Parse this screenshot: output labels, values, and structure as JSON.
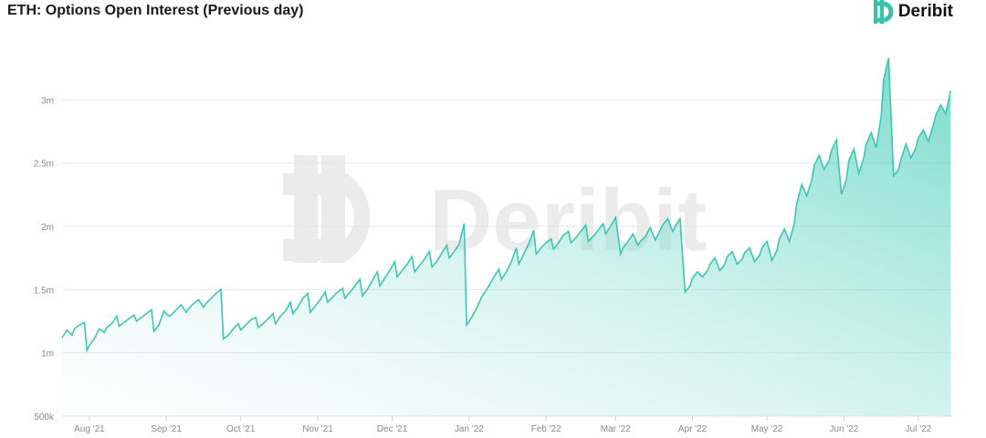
{
  "header": {
    "title": "ETH: Options Open Interest (Previous day)",
    "brand": "Deribit"
  },
  "watermark": {
    "text": "Deribit"
  },
  "colors": {
    "line": "#3ec6b3",
    "fill": "#5fd4c2",
    "grid": "#e6e6e6",
    "text": "#8a8a8a",
    "watermark": "#e8e8e8"
  },
  "chart_data": {
    "type": "area",
    "title": "ETH: Options Open Interest (Previous day)",
    "xlabel": "",
    "ylabel": "",
    "ylim": [
      500000,
      3500000
    ],
    "xlim": [
      "2021-07-21",
      "2022-07-15"
    ],
    "grid": true,
    "legend": "none",
    "y_ticks": [
      {
        "value": 500000,
        "label": "500k"
      },
      {
        "value": 1000000,
        "label": "1m"
      },
      {
        "value": 1500000,
        "label": "1.5m"
      },
      {
        "value": 2000000,
        "label": "2m"
      },
      {
        "value": 2500000,
        "label": "2.5m"
      },
      {
        "value": 3000000,
        "label": "3m"
      }
    ],
    "x_ticks": [
      {
        "date": "2021-08-01",
        "label": "Aug '21"
      },
      {
        "date": "2021-09-01",
        "label": "Sep '21"
      },
      {
        "date": "2021-10-01",
        "label": "Oct '21"
      },
      {
        "date": "2021-11-01",
        "label": "Nov '21"
      },
      {
        "date": "2021-12-01",
        "label": "Dec '21"
      },
      {
        "date": "2022-01-01",
        "label": "Jan '22"
      },
      {
        "date": "2022-02-01",
        "label": "Feb '22"
      },
      {
        "date": "2022-03-01",
        "label": "Mar '22"
      },
      {
        "date": "2022-04-01",
        "label": "Apr '22"
      },
      {
        "date": "2022-05-01",
        "label": "May '22"
      },
      {
        "date": "2022-06-01",
        "label": "Jun '22"
      },
      {
        "date": "2022-07-01",
        "label": "Jul '22"
      }
    ],
    "series": [
      {
        "x": [
          "2021-07-21",
          "2021-07-23",
          "2021-07-25",
          "2021-07-26",
          "2021-07-28",
          "2021-07-30",
          "2021-07-31",
          "2021-08-01",
          "2021-08-03",
          "2021-08-05",
          "2021-08-07",
          "2021-08-08",
          "2021-08-10",
          "2021-08-12",
          "2021-08-13",
          "2021-08-15",
          "2021-08-17",
          "2021-08-19",
          "2021-08-20",
          "2021-08-22",
          "2021-08-24",
          "2021-08-26",
          "2021-08-27",
          "2021-08-29",
          "2021-08-31",
          "2021-09-02",
          "2021-09-03",
          "2021-09-05",
          "2021-09-07",
          "2021-09-09",
          "2021-09-10",
          "2021-09-12",
          "2021-09-14",
          "2021-09-16",
          "2021-09-17",
          "2021-09-19",
          "2021-09-21",
          "2021-09-23",
          "2021-09-24",
          "2021-09-26",
          "2021-09-28",
          "2021-09-30",
          "2021-10-01",
          "2021-10-03",
          "2021-10-05",
          "2021-10-07",
          "2021-10-08",
          "2021-10-10",
          "2021-10-12",
          "2021-10-14",
          "2021-10-15",
          "2021-10-17",
          "2021-10-19",
          "2021-10-21",
          "2021-10-22",
          "2021-10-24",
          "2021-10-26",
          "2021-10-28",
          "2021-10-29",
          "2021-10-31",
          "2021-11-02",
          "2021-11-04",
          "2021-11-05",
          "2021-11-07",
          "2021-11-09",
          "2021-11-11",
          "2021-11-12",
          "2021-11-14",
          "2021-11-16",
          "2021-11-18",
          "2021-11-19",
          "2021-11-21",
          "2021-11-23",
          "2021-11-25",
          "2021-11-26",
          "2021-11-28",
          "2021-11-30",
          "2021-12-02",
          "2021-12-03",
          "2021-12-05",
          "2021-12-07",
          "2021-12-09",
          "2021-12-10",
          "2021-12-12",
          "2021-12-14",
          "2021-12-16",
          "2021-12-17",
          "2021-12-19",
          "2021-12-21",
          "2021-12-23",
          "2021-12-24",
          "2021-12-26",
          "2021-12-28",
          "2021-12-30",
          "2021-12-31",
          "2022-01-02",
          "2022-01-04",
          "2022-01-06",
          "2022-01-07",
          "2022-01-09",
          "2022-01-11",
          "2022-01-13",
          "2022-01-14",
          "2022-01-16",
          "2022-01-18",
          "2022-01-20",
          "2022-01-21",
          "2022-01-23",
          "2022-01-25",
          "2022-01-27",
          "2022-01-28",
          "2022-01-30",
          "2022-02-01",
          "2022-02-03",
          "2022-02-04",
          "2022-02-06",
          "2022-02-08",
          "2022-02-10",
          "2022-02-11",
          "2022-02-13",
          "2022-02-15",
          "2022-02-17",
          "2022-02-18",
          "2022-02-20",
          "2022-02-22",
          "2022-02-24",
          "2022-02-25",
          "2022-02-27",
          "2022-03-01",
          "2022-03-03",
          "2022-03-04",
          "2022-03-06",
          "2022-03-08",
          "2022-03-10",
          "2022-03-11",
          "2022-03-13",
          "2022-03-15",
          "2022-03-17",
          "2022-03-18",
          "2022-03-20",
          "2022-03-22",
          "2022-03-24",
          "2022-03-25",
          "2022-03-27",
          "2022-03-29",
          "2022-03-31",
          "2022-04-01",
          "2022-04-03",
          "2022-04-05",
          "2022-04-07",
          "2022-04-08",
          "2022-04-10",
          "2022-04-12",
          "2022-04-14",
          "2022-04-15",
          "2022-04-17",
          "2022-04-19",
          "2022-04-21",
          "2022-04-22",
          "2022-04-24",
          "2022-04-26",
          "2022-04-28",
          "2022-04-29",
          "2022-05-01",
          "2022-05-03",
          "2022-05-05",
          "2022-05-06",
          "2022-05-08",
          "2022-05-10",
          "2022-05-12",
          "2022-05-13",
          "2022-05-15",
          "2022-05-17",
          "2022-05-19",
          "2022-05-20",
          "2022-05-22",
          "2022-05-24",
          "2022-05-26",
          "2022-05-27",
          "2022-05-29",
          "2022-05-31",
          "2022-06-02",
          "2022-06-03",
          "2022-06-05",
          "2022-06-07",
          "2022-06-09",
          "2022-06-10",
          "2022-06-12",
          "2022-06-14",
          "2022-06-16",
          "2022-06-17",
          "2022-06-19",
          "2022-06-21",
          "2022-06-23",
          "2022-06-24",
          "2022-06-26",
          "2022-06-28",
          "2022-06-30",
          "2022-07-01",
          "2022-07-03",
          "2022-07-05",
          "2022-07-07",
          "2022-07-08",
          "2022-07-10",
          "2022-07-12",
          "2022-07-14"
        ],
        "values": [
          1120000,
          1180000,
          1140000,
          1190000,
          1220000,
          1240000,
          1020000,
          1060000,
          1110000,
          1190000,
          1160000,
          1200000,
          1230000,
          1290000,
          1210000,
          1240000,
          1270000,
          1300000,
          1250000,
          1280000,
          1310000,
          1340000,
          1170000,
          1220000,
          1330000,
          1290000,
          1300000,
          1340000,
          1380000,
          1320000,
          1350000,
          1390000,
          1420000,
          1360000,
          1390000,
          1430000,
          1470000,
          1500000,
          1110000,
          1140000,
          1190000,
          1230000,
          1180000,
          1220000,
          1260000,
          1280000,
          1200000,
          1230000,
          1270000,
          1310000,
          1230000,
          1290000,
          1330000,
          1400000,
          1310000,
          1360000,
          1430000,
          1470000,
          1320000,
          1370000,
          1420000,
          1480000,
          1400000,
          1440000,
          1480000,
          1510000,
          1430000,
          1480000,
          1530000,
          1580000,
          1450000,
          1500000,
          1570000,
          1640000,
          1530000,
          1590000,
          1650000,
          1720000,
          1600000,
          1650000,
          1700000,
          1760000,
          1640000,
          1690000,
          1740000,
          1800000,
          1680000,
          1720000,
          1790000,
          1850000,
          1750000,
          1800000,
          1860000,
          2020000,
          1220000,
          1280000,
          1350000,
          1440000,
          1470000,
          1530000,
          1600000,
          1660000,
          1580000,
          1640000,
          1720000,
          1830000,
          1700000,
          1780000,
          1860000,
          1970000,
          1780000,
          1830000,
          1870000,
          1900000,
          1820000,
          1870000,
          1930000,
          1960000,
          1870000,
          1910000,
          1960000,
          2010000,
          1880000,
          1920000,
          1970000,
          2020000,
          1940000,
          2000000,
          2070000,
          1780000,
          1830000,
          1880000,
          1940000,
          1850000,
          1880000,
          1920000,
          1990000,
          1890000,
          1930000,
          2010000,
          2060000,
          1960000,
          2000000,
          2060000,
          1480000,
          1530000,
          1590000,
          1640000,
          1600000,
          1650000,
          1700000,
          1750000,
          1650000,
          1700000,
          1760000,
          1800000,
          1700000,
          1740000,
          1790000,
          1830000,
          1720000,
          1770000,
          1830000,
          1880000,
          1730000,
          1810000,
          1900000,
          1980000,
          1880000,
          2020000,
          2180000,
          2330000,
          2240000,
          2360000,
          2480000,
          2560000,
          2450000,
          2520000,
          2600000,
          2680000,
          2250000,
          2370000,
          2520000,
          2610000,
          2420000,
          2540000,
          2650000,
          2740000,
          2620000,
          2870000,
          3160000,
          3330000,
          2400000,
          2450000,
          2530000,
          2650000,
          2540000,
          2620000,
          2700000,
          2760000,
          2670000,
          2800000,
          2880000,
          2960000,
          2890000,
          3070000
        ]
      }
    ]
  }
}
